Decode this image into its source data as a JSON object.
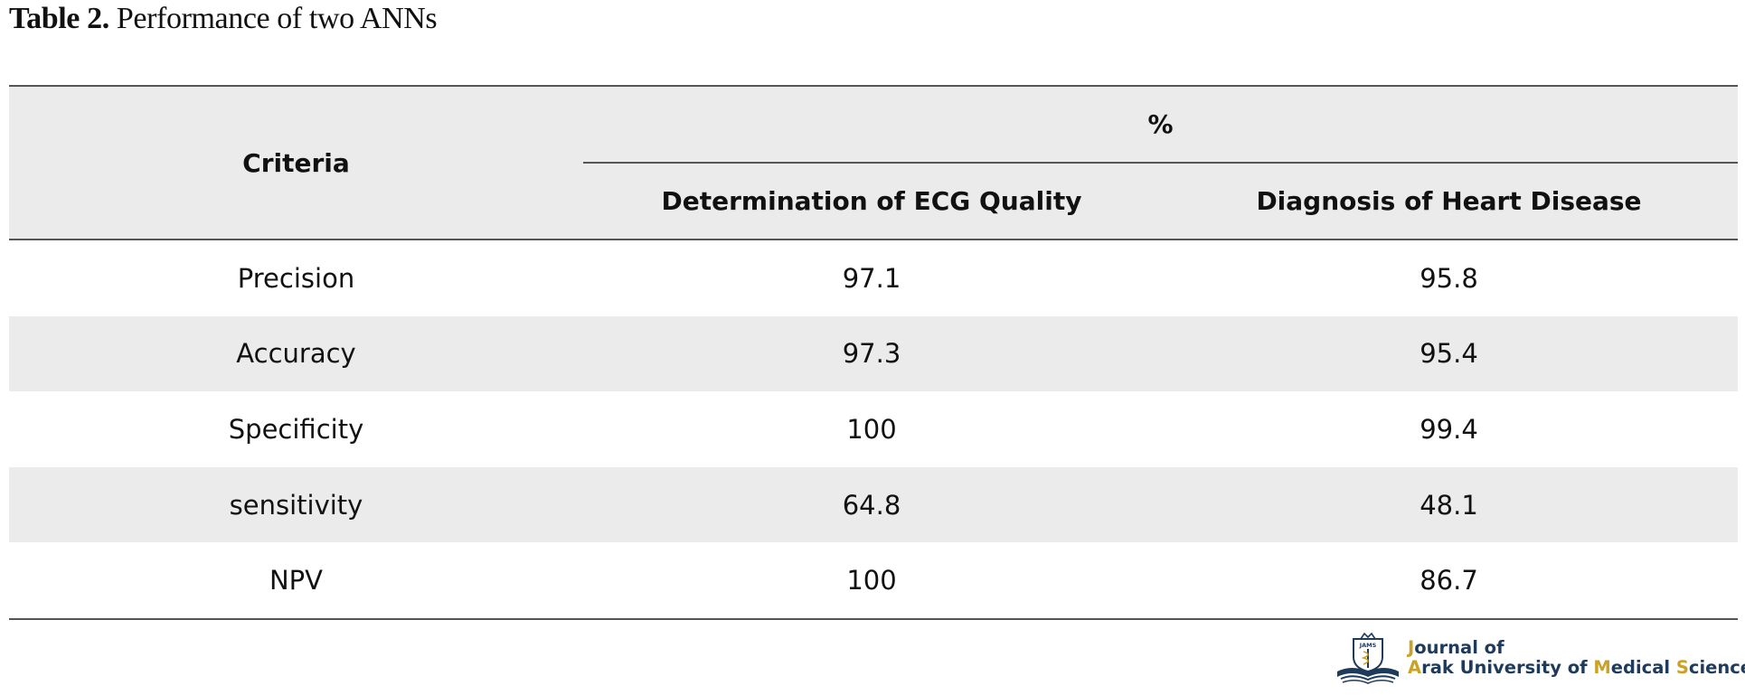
{
  "caption": {
    "label": "Table 2.",
    "text": "Performance of two ANNs"
  },
  "table": {
    "criteria_header": "Criteria",
    "group_header": "%",
    "columns": [
      "Determination of ECG Quality",
      "Diagnosis of Heart Disease"
    ],
    "rows": [
      {
        "criteria": "Precision",
        "ecg_quality": "97.1",
        "heart_disease": "95.8"
      },
      {
        "criteria": "Accuracy",
        "ecg_quality": "97.3",
        "heart_disease": "95.4"
      },
      {
        "criteria": "Specificity",
        "ecg_quality": "100",
        "heart_disease": "99.4"
      },
      {
        "criteria": "sensitivity",
        "ecg_quality": "64.8",
        "heart_disease": "48.1"
      },
      {
        "criteria": "NPV",
        "ecg_quality": "100",
        "heart_disease": "86.7"
      }
    ]
  },
  "logo": {
    "line1_first": "J",
    "line1_rest": "ournal of",
    "line2": [
      {
        "text": "A",
        "hl": true
      },
      {
        "text": "rak University of ",
        "hl": false
      },
      {
        "text": "M",
        "hl": true
      },
      {
        "text": "edical ",
        "hl": false
      },
      {
        "text": "S",
        "hl": true
      },
      {
        "text": "ciences",
        "hl": false
      }
    ],
    "emblem_text": "JAMS",
    "colors": {
      "navy": "#1f3b5c",
      "gold": "#c9a227"
    }
  }
}
